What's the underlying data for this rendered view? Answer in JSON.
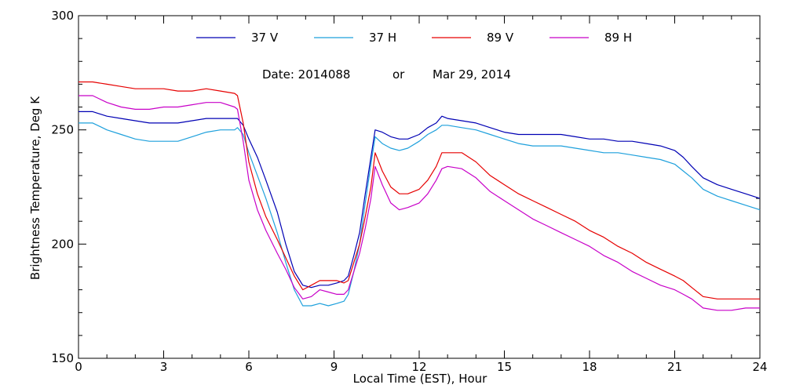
{
  "chart_data": {
    "type": "line",
    "xlabel": "Local Time (EST), Hour",
    "ylabel": "Brightness Temperature, Deg K",
    "xlim": [
      0,
      24
    ],
    "ylim": [
      150,
      300
    ],
    "x_ticks": [
      0,
      3,
      6,
      9,
      12,
      15,
      18,
      21,
      24
    ],
    "y_ticks": [
      150,
      200,
      250,
      300
    ],
    "grid": false,
    "legend_placement": "top",
    "annotation": {
      "date_label": "Date: 2014088",
      "or_label": "or",
      "date_text": "Mar 29, 2014"
    },
    "series": [
      {
        "name": "37 V",
        "color": "#0000b4",
        "points": [
          [
            0,
            258
          ],
          [
            0.5,
            258
          ],
          [
            1,
            256
          ],
          [
            1.5,
            255
          ],
          [
            2,
            254
          ],
          [
            2.5,
            253
          ],
          [
            3,
            253
          ],
          [
            3.5,
            253
          ],
          [
            4,
            254
          ],
          [
            4.5,
            255
          ],
          [
            5,
            255
          ],
          [
            5.5,
            255
          ],
          [
            5.6,
            255
          ],
          [
            5.8,
            252
          ],
          [
            6,
            246
          ],
          [
            6.3,
            238
          ],
          [
            6.6,
            228
          ],
          [
            7,
            214
          ],
          [
            7.3,
            200
          ],
          [
            7.6,
            188
          ],
          [
            7.9,
            182
          ],
          [
            8.2,
            181
          ],
          [
            8.5,
            182
          ],
          [
            8.8,
            182
          ],
          [
            9.1,
            183
          ],
          [
            9.35,
            184
          ],
          [
            9.5,
            186
          ],
          [
            9.7,
            195
          ],
          [
            9.9,
            205
          ],
          [
            10.1,
            222
          ],
          [
            10.3,
            238
          ],
          [
            10.45,
            250
          ],
          [
            10.7,
            249
          ],
          [
            11,
            247
          ],
          [
            11.3,
            246
          ],
          [
            11.6,
            246
          ],
          [
            12,
            248
          ],
          [
            12.3,
            251
          ],
          [
            12.6,
            253
          ],
          [
            12.8,
            256
          ],
          [
            13,
            255
          ],
          [
            13.5,
            254
          ],
          [
            14,
            253
          ],
          [
            14.5,
            251
          ],
          [
            15,
            249
          ],
          [
            15.5,
            248
          ],
          [
            16,
            248
          ],
          [
            16.5,
            248
          ],
          [
            17,
            248
          ],
          [
            17.5,
            247
          ],
          [
            18,
            246
          ],
          [
            18.5,
            246
          ],
          [
            19,
            245
          ],
          [
            19.5,
            245
          ],
          [
            20,
            244
          ],
          [
            20.5,
            243
          ],
          [
            21,
            241
          ],
          [
            21.3,
            238
          ],
          [
            21.6,
            234
          ],
          [
            22,
            229
          ],
          [
            22.5,
            226
          ],
          [
            23,
            224
          ],
          [
            23.5,
            222
          ],
          [
            24,
            220
          ]
        ]
      },
      {
        "name": "37 H",
        "color": "#1ea0dc",
        "points": [
          [
            0,
            253
          ],
          [
            0.5,
            253
          ],
          [
            1,
            250
          ],
          [
            1.5,
            248
          ],
          [
            2,
            246
          ],
          [
            2.5,
            245
          ],
          [
            3,
            245
          ],
          [
            3.5,
            245
          ],
          [
            4,
            247
          ],
          [
            4.5,
            249
          ],
          [
            5,
            250
          ],
          [
            5.5,
            250
          ],
          [
            5.6,
            251
          ],
          [
            5.8,
            248
          ],
          [
            6,
            240
          ],
          [
            6.3,
            230
          ],
          [
            6.6,
            220
          ],
          [
            7,
            205
          ],
          [
            7.3,
            192
          ],
          [
            7.6,
            180
          ],
          [
            7.9,
            173
          ],
          [
            8.2,
            173
          ],
          [
            8.5,
            174
          ],
          [
            8.8,
            173
          ],
          [
            9.1,
            174
          ],
          [
            9.35,
            175
          ],
          [
            9.5,
            178
          ],
          [
            9.7,
            188
          ],
          [
            9.9,
            200
          ],
          [
            10.1,
            218
          ],
          [
            10.3,
            235
          ],
          [
            10.45,
            247
          ],
          [
            10.7,
            244
          ],
          [
            11,
            242
          ],
          [
            11.3,
            241
          ],
          [
            11.6,
            242
          ],
          [
            12,
            245
          ],
          [
            12.3,
            248
          ],
          [
            12.6,
            250
          ],
          [
            12.8,
            252
          ],
          [
            13,
            252
          ],
          [
            13.5,
            251
          ],
          [
            14,
            250
          ],
          [
            14.5,
            248
          ],
          [
            15,
            246
          ],
          [
            15.5,
            244
          ],
          [
            16,
            243
          ],
          [
            16.5,
            243
          ],
          [
            17,
            243
          ],
          [
            17.5,
            242
          ],
          [
            18,
            241
          ],
          [
            18.5,
            240
          ],
          [
            19,
            240
          ],
          [
            19.5,
            239
          ],
          [
            20,
            238
          ],
          [
            20.5,
            237
          ],
          [
            21,
            235
          ],
          [
            21.3,
            232
          ],
          [
            21.6,
            229
          ],
          [
            22,
            224
          ],
          [
            22.5,
            221
          ],
          [
            23,
            219
          ],
          [
            23.5,
            217
          ],
          [
            24,
            215
          ]
        ]
      },
      {
        "name": "89 V",
        "color": "#e60000",
        "points": [
          [
            0,
            271
          ],
          [
            0.5,
            271
          ],
          [
            1,
            270
          ],
          [
            1.5,
            269
          ],
          [
            2,
            268
          ],
          [
            2.5,
            268
          ],
          [
            3,
            268
          ],
          [
            3.5,
            267
          ],
          [
            4,
            267
          ],
          [
            4.5,
            268
          ],
          [
            5,
            267
          ],
          [
            5.5,
            266
          ],
          [
            5.6,
            265
          ],
          [
            5.8,
            253
          ],
          [
            6,
            236
          ],
          [
            6.3,
            222
          ],
          [
            6.6,
            212
          ],
          [
            7,
            202
          ],
          [
            7.3,
            194
          ],
          [
            7.6,
            186
          ],
          [
            7.9,
            180
          ],
          [
            8.2,
            182
          ],
          [
            8.5,
            184
          ],
          [
            8.8,
            184
          ],
          [
            9.1,
            184
          ],
          [
            9.35,
            183
          ],
          [
            9.5,
            184
          ],
          [
            9.7,
            192
          ],
          [
            9.9,
            200
          ],
          [
            10.1,
            212
          ],
          [
            10.3,
            225
          ],
          [
            10.45,
            240
          ],
          [
            10.7,
            232
          ],
          [
            11,
            225
          ],
          [
            11.3,
            222
          ],
          [
            11.6,
            222
          ],
          [
            12,
            224
          ],
          [
            12.3,
            228
          ],
          [
            12.6,
            234
          ],
          [
            12.8,
            240
          ],
          [
            13,
            240
          ],
          [
            13.5,
            240
          ],
          [
            14,
            236
          ],
          [
            14.5,
            230
          ],
          [
            15,
            226
          ],
          [
            15.5,
            222
          ],
          [
            16,
            219
          ],
          [
            16.5,
            216
          ],
          [
            17,
            213
          ],
          [
            17.5,
            210
          ],
          [
            18,
            206
          ],
          [
            18.5,
            203
          ],
          [
            19,
            199
          ],
          [
            19.5,
            196
          ],
          [
            20,
            192
          ],
          [
            20.5,
            189
          ],
          [
            21,
            186
          ],
          [
            21.3,
            184
          ],
          [
            21.6,
            181
          ],
          [
            22,
            177
          ],
          [
            22.5,
            176
          ],
          [
            23,
            176
          ],
          [
            23.5,
            176
          ],
          [
            24,
            176
          ]
        ]
      },
      {
        "name": "89 H",
        "color": "#c800c8",
        "points": [
          [
            0,
            265
          ],
          [
            0.5,
            265
          ],
          [
            1,
            262
          ],
          [
            1.5,
            260
          ],
          [
            2,
            259
          ],
          [
            2.5,
            259
          ],
          [
            3,
            260
          ],
          [
            3.5,
            260
          ],
          [
            4,
            261
          ],
          [
            4.5,
            262
          ],
          [
            5,
            262
          ],
          [
            5.5,
            260
          ],
          [
            5.6,
            259
          ],
          [
            5.8,
            245
          ],
          [
            6,
            228
          ],
          [
            6.3,
            215
          ],
          [
            6.6,
            206
          ],
          [
            7,
            196
          ],
          [
            7.3,
            189
          ],
          [
            7.6,
            181
          ],
          [
            7.9,
            176
          ],
          [
            8.2,
            177
          ],
          [
            8.5,
            180
          ],
          [
            8.8,
            179
          ],
          [
            9.1,
            178
          ],
          [
            9.35,
            178
          ],
          [
            9.5,
            180
          ],
          [
            9.7,
            188
          ],
          [
            9.9,
            196
          ],
          [
            10.1,
            207
          ],
          [
            10.3,
            220
          ],
          [
            10.45,
            234
          ],
          [
            10.7,
            226
          ],
          [
            11,
            218
          ],
          [
            11.3,
            215
          ],
          [
            11.6,
            216
          ],
          [
            12,
            218
          ],
          [
            12.3,
            222
          ],
          [
            12.6,
            228
          ],
          [
            12.8,
            233
          ],
          [
            13,
            234
          ],
          [
            13.5,
            233
          ],
          [
            14,
            229
          ],
          [
            14.5,
            223
          ],
          [
            15,
            219
          ],
          [
            15.5,
            215
          ],
          [
            16,
            211
          ],
          [
            16.5,
            208
          ],
          [
            17,
            205
          ],
          [
            17.5,
            202
          ],
          [
            18,
            199
          ],
          [
            18.5,
            195
          ],
          [
            19,
            192
          ],
          [
            19.5,
            188
          ],
          [
            20,
            185
          ],
          [
            20.5,
            182
          ],
          [
            21,
            180
          ],
          [
            21.3,
            178
          ],
          [
            21.6,
            176
          ],
          [
            22,
            172
          ],
          [
            22.5,
            171
          ],
          [
            23,
            171
          ],
          [
            23.5,
            172
          ],
          [
            24,
            172
          ]
        ]
      }
    ]
  }
}
